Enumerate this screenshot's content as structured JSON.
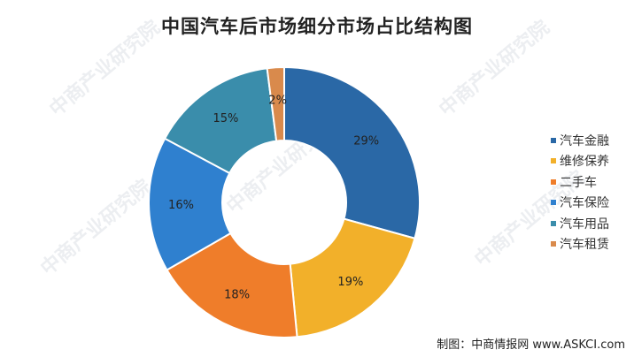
{
  "chart_data": {
    "type": "pie",
    "title": "中国汽车后市场细分市场占比结构图",
    "donut": true,
    "categories": [
      "汽车金融",
      "维修保养",
      "二手车",
      "汽车保险",
      "汽车用品",
      "汽车租赁"
    ],
    "values": [
      29,
      19,
      18,
      16,
      15,
      2
    ],
    "labels": [
      "29%",
      "19%",
      "18%",
      "16%",
      "15%",
      "2%"
    ],
    "colors": [
      "#2a68a6",
      "#f2b02a",
      "#ef7d2a",
      "#2f80cf",
      "#3a8dab",
      "#d98a4c"
    ],
    "legend_position": "right"
  },
  "source": "制图：中商情报网 www.ASKCI.com",
  "watermark": "中商产业研究院"
}
